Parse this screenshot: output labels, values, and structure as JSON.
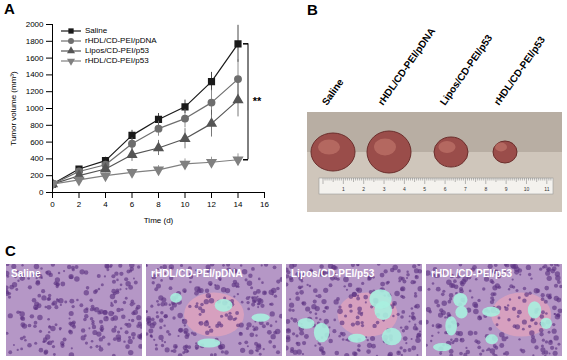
{
  "chart_data": {
    "type": "line",
    "title": "A",
    "x_label": "Time (d)",
    "y_label": "Tumor volume (mm³)",
    "x": [
      0,
      2,
      4,
      6,
      8,
      10,
      12,
      14
    ],
    "xlim": [
      0,
      16
    ],
    "xticks": [
      0,
      2,
      4,
      6,
      8,
      10,
      12,
      14,
      16
    ],
    "ylim": [
      0,
      2000
    ],
    "yticks": [
      0,
      200,
      400,
      600,
      800,
      1000,
      1200,
      1400,
      1600,
      1800,
      2000
    ],
    "legend": "upper-left",
    "series": [
      {
        "name": "Saline",
        "color": "#1a1a1a",
        "marker": "square",
        "values": [
          100,
          280,
          380,
          680,
          870,
          1020,
          1320,
          1770
        ],
        "errors": [
          10,
          30,
          40,
          60,
          70,
          80,
          110,
          220
        ]
      },
      {
        "name": "rHDL/CD-PEI/pDNA",
        "color": "#6e6e6e",
        "marker": "circle",
        "values": [
          100,
          250,
          330,
          580,
          760,
          880,
          1070,
          1350
        ],
        "errors": [
          10,
          30,
          40,
          70,
          90,
          110,
          150,
          230
        ]
      },
      {
        "name": "Lipos/CD-PEI/p53",
        "color": "#555555",
        "marker": "triangle",
        "values": [
          100,
          200,
          280,
          450,
          530,
          640,
          820,
          1100
        ],
        "errors": [
          10,
          30,
          40,
          80,
          90,
          120,
          160,
          200
        ]
      },
      {
        "name": "rHDL/CD-PEI/p53",
        "color": "#808080",
        "marker": "triangle-down",
        "values": [
          100,
          150,
          200,
          240,
          270,
          340,
          360,
          390
        ],
        "errors": [
          10,
          20,
          30,
          40,
          50,
          60,
          60,
          70
        ]
      }
    ],
    "annotations": [
      {
        "text": "**",
        "between": [
          "Saline",
          "rHDL/CD-PEI/p53"
        ]
      }
    ]
  },
  "panel_b": {
    "title": "B",
    "labels": [
      "Saline",
      "rHDL/CD-PEI/pDNA",
      "Lipos/CD-PEI/p53",
      "rHDL/CD-PEI/p53"
    ],
    "ruler_ticks": [
      1,
      2,
      3,
      4,
      5,
      6,
      7,
      8,
      9,
      10,
      11
    ]
  },
  "panel_c": {
    "title": "C",
    "labels": [
      "Saline",
      "rHDL/CD-PEI/pDNA",
      "Lipos/CD-PEI/p53",
      "rHDL/CD-PEI/p53"
    ]
  }
}
